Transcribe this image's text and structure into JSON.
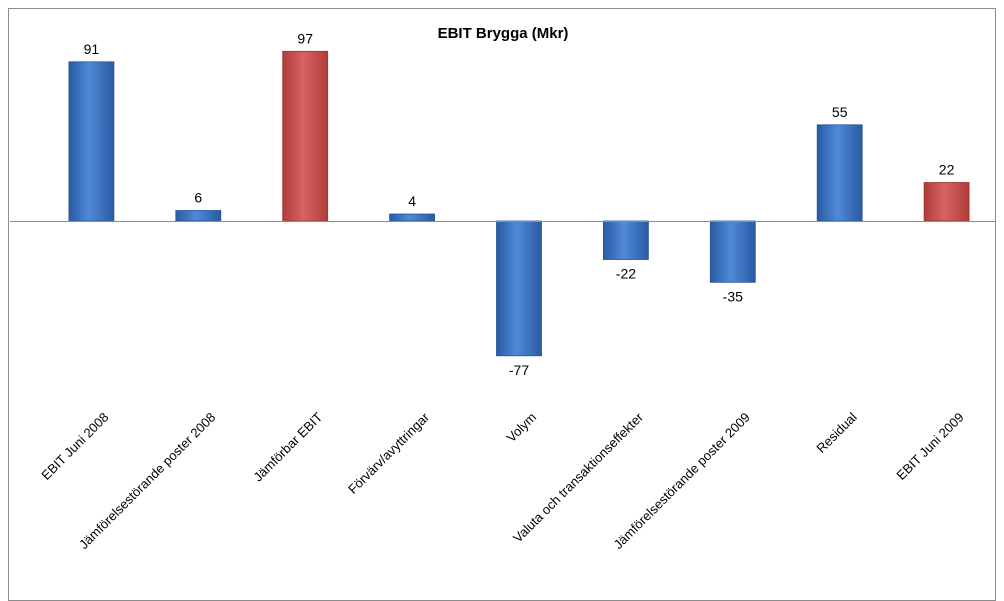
{
  "chart_data": {
    "type": "bar",
    "title": "EBIT Brygga (Mkr)",
    "xlabel": "",
    "ylabel": "",
    "ylim": [
      -100,
      100
    ],
    "grid": false,
    "categories": [
      "EBIT  Juni 2008",
      "Jämförelsestörande poster 2008",
      "Jämförbar EBIT",
      "Förvärv/avyttringar",
      "Volym",
      "Valuta och transaktionseffekter",
      "Jämförelsestörande poster 2009",
      "Residual",
      "EBIT  Juni 2009"
    ],
    "values": [
      91,
      6,
      97,
      4,
      -77,
      -22,
      -35,
      55,
      22
    ],
    "labels": [
      "91",
      "6",
      "97",
      "4",
      "-77",
      "-22",
      "-35",
      "55",
      "22"
    ],
    "bar_colors": [
      "#3f78c8",
      "#3f78c8",
      "#cc4f4d",
      "#3f78c8",
      "#3f78c8",
      "#3f78c8",
      "#3f78c8",
      "#3f78c8",
      "#cc4f4d"
    ],
    "colors": {
      "blue": "#3f78c8",
      "red": "#cc4f4d",
      "axis": "#8c8c8c",
      "border": "#8c8c8c"
    }
  }
}
